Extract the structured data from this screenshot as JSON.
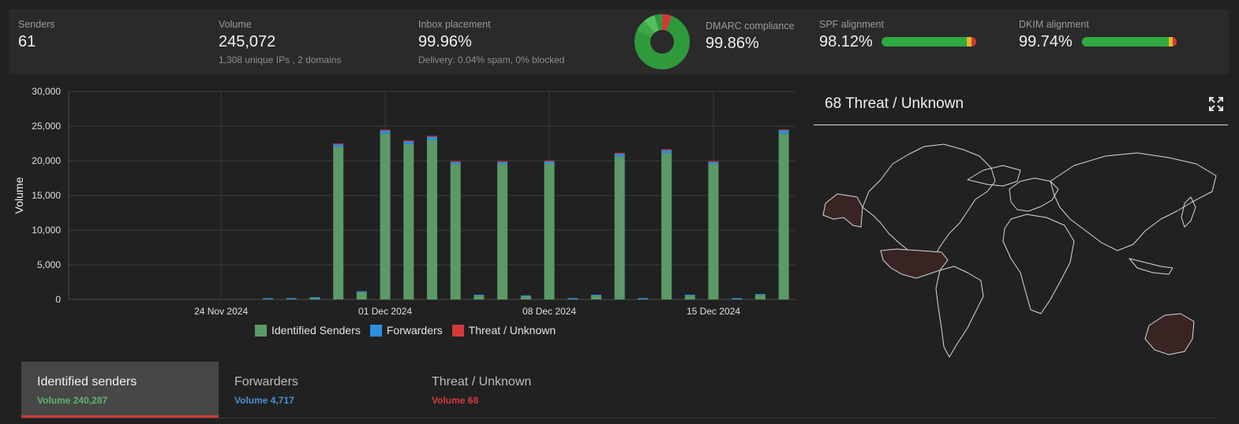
{
  "stats": {
    "senders": {
      "label": "Senders",
      "value": "61"
    },
    "volume": {
      "label": "Volume",
      "value": "245,072",
      "sub": "1,308 unique IPs , 2 domains"
    },
    "inbox": {
      "label": "Inbox placement",
      "value": "99.96%",
      "sub": "Delivery: 0.04% spam, 0% blocked"
    },
    "dmarc": {
      "label": "DMARC compliance",
      "value": "99.86%"
    },
    "spf": {
      "label": "SPF alignment",
      "value": "98.12%"
    },
    "dkim": {
      "label": "DKIM alignment",
      "value": "99.74%"
    }
  },
  "colors": {
    "identified": "#5b9a68",
    "forwarders": "#2e8fe0",
    "threat": "#d23a3a",
    "green_bar": "#2faa40",
    "yellow": "#e6b820"
  },
  "chart_data": {
    "type": "bar",
    "stacked": true,
    "ylabel": "Volume",
    "ylim": [
      0,
      30000
    ],
    "yticks": [
      "0",
      "5,000",
      "10,000",
      "15,000",
      "20,000",
      "25,000",
      "30,000"
    ],
    "xtick_labels": [
      "24 Nov 2024",
      "01 Dec 2024",
      "08 Dec 2024",
      "15 Dec 2024"
    ],
    "legend": [
      "Identified Senders",
      "Forwarders",
      "Threat / Unknown"
    ],
    "categories": [
      "18 Nov 2024",
      "19 Nov 2024",
      "20 Nov 2024",
      "21 Nov 2024",
      "22 Nov 2024",
      "23 Nov 2024",
      "24 Nov 2024",
      "25 Nov 2024",
      "26 Nov 2024",
      "27 Nov 2024",
      "28 Nov 2024",
      "29 Nov 2024",
      "30 Nov 2024",
      "01 Dec 2024",
      "02 Dec 2024",
      "03 Dec 2024",
      "04 Dec 2024",
      "05 Dec 2024",
      "06 Dec 2024",
      "07 Dec 2024",
      "08 Dec 2024",
      "09 Dec 2024",
      "10 Dec 2024",
      "11 Dec 2024",
      "12 Dec 2024",
      "13 Dec 2024",
      "14 Dec 2024",
      "15 Dec 2024",
      "16 Dec 2024",
      "17 Dec 2024",
      "18 Dec 2024"
    ],
    "series": [
      {
        "name": "Identified Senders",
        "values": [
          0,
          0,
          0,
          0,
          0,
          0,
          0,
          0,
          40,
          60,
          200,
          22000,
          1050,
          23900,
          22400,
          23000,
          19500,
          550,
          19500,
          450,
          19600,
          50,
          550,
          20600,
          50,
          21100,
          550,
          19500,
          50,
          650,
          23900
        ]
      },
      {
        "name": "Forwarders",
        "values": [
          0,
          0,
          0,
          0,
          0,
          0,
          0,
          0,
          10,
          20,
          50,
          350,
          50,
          450,
          400,
          450,
          300,
          50,
          300,
          50,
          300,
          20,
          50,
          400,
          20,
          420,
          50,
          300,
          20,
          50,
          480
        ]
      },
      {
        "name": "Threat / Unknown",
        "values": [
          0,
          0,
          0,
          0,
          0,
          0,
          0,
          0,
          0,
          0,
          0,
          5,
          0,
          5,
          5,
          5,
          3,
          0,
          3,
          0,
          3,
          0,
          0,
          3,
          0,
          3,
          0,
          3,
          0,
          0,
          8
        ]
      }
    ]
  },
  "map": {
    "title": "68 Threat / Unknown"
  },
  "tabs": [
    {
      "name": "Identified senders",
      "volume": "Volume 240,287",
      "color": "#5fb36e"
    },
    {
      "name": "Forwarders",
      "volume": "Volume 4,717",
      "color": "#4a8fd4"
    },
    {
      "name": "Threat / Unknown",
      "volume": "Volume 68",
      "color": "#d43a3a"
    }
  ]
}
